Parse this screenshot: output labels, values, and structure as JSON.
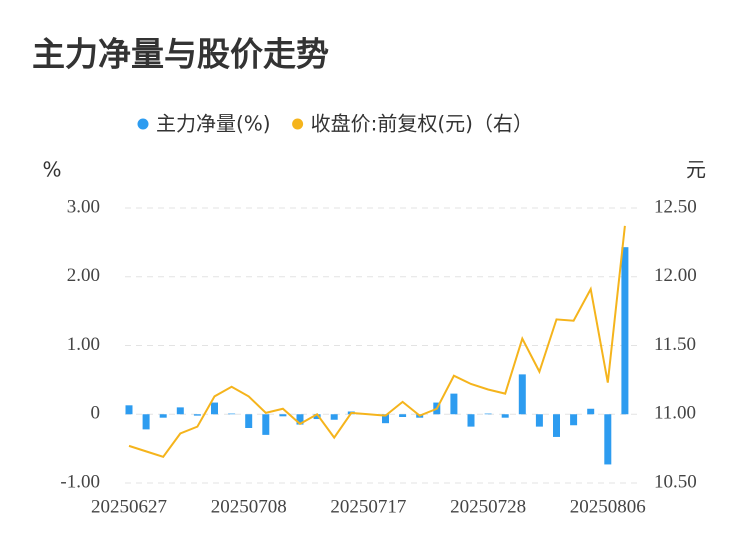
{
  "chart_data": {
    "type": "bar-line",
    "title": "主力净量与股价走势",
    "y_unit": "%",
    "y2_unit": "元",
    "categories": [
      "20250627",
      null,
      null,
      null,
      null,
      null,
      null,
      "20250708",
      null,
      null,
      null,
      null,
      null,
      null,
      "20250717",
      null,
      null,
      null,
      null,
      null,
      null,
      "20250728",
      null,
      null,
      null,
      null,
      null,
      null,
      "20250806",
      null
    ],
    "series": [
      {
        "name": "主力净量(%)",
        "type": "bar",
        "color": "#2d9cf0",
        "values": [
          0.13,
          -0.22,
          -0.05,
          0.1,
          -0.02,
          0.17,
          0.01,
          -0.2,
          -0.3,
          -0.03,
          -0.15,
          -0.07,
          -0.08,
          0.04,
          0.01,
          -0.13,
          -0.04,
          -0.05,
          0.17,
          0.3,
          -0.18,
          0.01,
          -0.05,
          0.58,
          -0.18,
          -0.33,
          -0.16,
          0.08,
          -0.73,
          2.43
        ]
      },
      {
        "name": "收盘价:前复权(元)（右）",
        "type": "line",
        "axis": "y2",
        "color": "#f5b41c",
        "values": [
          10.77,
          10.73,
          10.69,
          10.86,
          10.91,
          11.13,
          11.2,
          11.13,
          11.01,
          11.04,
          10.93,
          11.0,
          10.83,
          11.01,
          11.0,
          10.99,
          11.09,
          10.99,
          11.04,
          11.28,
          11.22,
          11.18,
          11.15,
          11.55,
          11.31,
          11.69,
          11.68,
          11.91,
          11.23,
          12.37
        ]
      }
    ],
    "ylim": [
      -1,
      3
    ],
    "yticks": [
      {
        "value": 3,
        "label": "3.00"
      },
      {
        "value": 2,
        "label": "2.00"
      },
      {
        "value": 1,
        "label": "1.00"
      },
      0,
      {
        "value": -1,
        "label": "-1.00"
      }
    ],
    "y2lim": [
      10.5,
      12.5
    ],
    "y2ticks": [
      {
        "value": 12.5,
        "label": "12.50"
      },
      {
        "value": 12,
        "label": "12.00"
      },
      {
        "value": 11.5,
        "label": "11.50"
      },
      {
        "value": 11,
        "label": "11.00"
      },
      {
        "value": 10.5,
        "label": "10.50"
      }
    ],
    "grid": true
  }
}
